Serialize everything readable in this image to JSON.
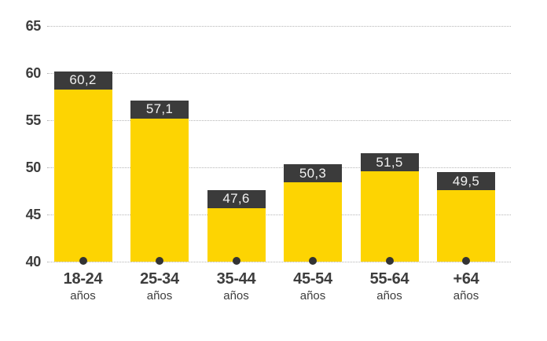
{
  "chart_data": {
    "type": "bar",
    "title": "",
    "categories": [
      "18-24",
      "25-34",
      "35-44",
      "45-54",
      "55-64",
      "+64"
    ],
    "category_unit": "años",
    "values": [
      60.2,
      57.1,
      47.6,
      50.3,
      51.5,
      49.5
    ],
    "value_labels": [
      "60,2",
      "57,1",
      "47,6",
      "50,3",
      "51,5",
      "49,5"
    ],
    "yticks": [
      65,
      60,
      55,
      50,
      45,
      40
    ],
    "ylim": [
      40,
      65
    ],
    "grid": "horizontal-dotted",
    "legend": "none"
  },
  "colors": {
    "bar_fill": "#FDD402",
    "value_box_bg": "#3B3B3B",
    "value_text": "#F2F2F2",
    "axis_text": "#3D3D3D",
    "gridline": "#B5B5B5",
    "baseline_dot": "#333333",
    "background": "#FFFFFF"
  }
}
